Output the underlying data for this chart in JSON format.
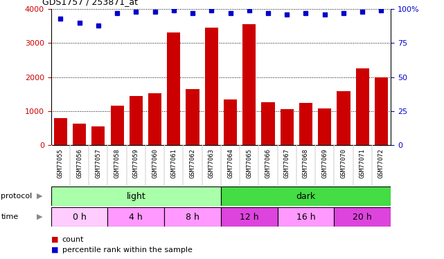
{
  "title": "GDS1757 / 253871_at",
  "samples": [
    "GSM77055",
    "GSM77056",
    "GSM77057",
    "GSM77058",
    "GSM77059",
    "GSM77060",
    "GSM77061",
    "GSM77062",
    "GSM77063",
    "GSM77064",
    "GSM77065",
    "GSM77066",
    "GSM77067",
    "GSM77068",
    "GSM77069",
    "GSM77070",
    "GSM77071",
    "GSM77072"
  ],
  "counts": [
    800,
    640,
    550,
    1150,
    1450,
    1530,
    3320,
    1650,
    3450,
    1340,
    3560,
    1250,
    1060,
    1240,
    1080,
    1580,
    2250,
    2000
  ],
  "percentile_ranks": [
    93,
    90,
    88,
    97,
    98,
    98,
    99,
    97,
    99,
    97,
    99,
    97,
    96,
    97,
    96,
    97,
    98,
    99
  ],
  "bar_color": "#cc0000",
  "percentile_color": "#0000cc",
  "left_axis_color": "#cc0000",
  "right_axis_color": "#0000cc",
  "ylim_left": [
    0,
    4000
  ],
  "ylim_right": [
    0,
    100
  ],
  "left_yticks": [
    0,
    1000,
    2000,
    3000,
    4000
  ],
  "right_yticks": [
    0,
    25,
    50,
    75,
    100
  ],
  "right_yticklabels": [
    "0",
    "25",
    "50",
    "75",
    "100%"
  ],
  "protocol_label": "protocol",
  "time_label": "time",
  "light_label": "light",
  "dark_label": "dark",
  "light_color": "#aaffaa",
  "dark_color": "#44dd44",
  "time_colors": [
    "#ffccff",
    "#ff99ff",
    "#ff99ff",
    "#dd44dd",
    "#ff99ff",
    "#dd44dd"
  ],
  "time_labels": [
    "0 h",
    "4 h",
    "8 h",
    "12 h",
    "16 h",
    "20 h"
  ],
  "legend_count_label": "count",
  "legend_percentile_label": "percentile rank within the sample",
  "light_samples": 9,
  "dark_samples": 9,
  "time_groups": [
    3,
    3,
    3,
    3,
    3,
    3
  ],
  "tick_bg_color": "#cccccc",
  "background_color": "#ffffff",
  "grid_color": "black",
  "spine_color": "black"
}
